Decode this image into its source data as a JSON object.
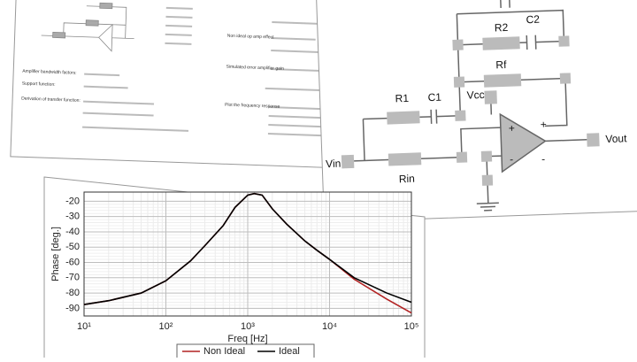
{
  "document": {
    "notes": [
      "Amplifier bandwidth factors:",
      "Support function:",
      "Derivation of transfer function:",
      "Non ideal op amp effect",
      "Simulated error amplifier gain",
      "Plot the frequency response"
    ]
  },
  "circuit": {
    "labels": [
      "R2",
      "C2",
      "Rf",
      "R1",
      "C1",
      "Vcc",
      "Vin",
      "Rin",
      "Vout",
      "+",
      "-",
      "+",
      "-"
    ]
  },
  "chart_data": {
    "type": "line",
    "xlabel": "Freq [Hz]",
    "ylabel": "Phase [deg.]",
    "x": [
      10,
      20,
      50,
      100,
      200,
      300,
      500,
      700,
      1000,
      1200,
      1500,
      2000,
      3000,
      5000,
      7000,
      10000,
      20000,
      50000,
      100000
    ],
    "series": [
      {
        "name": "Non Ideal",
        "color": "#b22222",
        "values": [
          -87.5,
          -85,
          -80,
          -72,
          -59,
          -49,
          -36,
          -24,
          -16,
          -15,
          -16,
          -25,
          -35,
          -46,
          -52,
          -58,
          -71,
          -84,
          -93
        ]
      },
      {
        "name": "Ideal",
        "color": "#000000",
        "values": [
          -87.5,
          -85,
          -80,
          -72,
          -59,
          -49,
          -36,
          -24,
          -16,
          -15,
          -16,
          -25,
          -35,
          -46,
          -52,
          -58,
          -70,
          -80,
          -86
        ]
      }
    ],
    "xlim": [
      10,
      100000
    ],
    "xscale": "log",
    "xticks": [
      {
        "value": 10,
        "label": "10¹"
      },
      {
        "value": 100,
        "label": "10²"
      },
      {
        "value": 1000,
        "label": "10³"
      },
      {
        "value": 10000,
        "label": "10⁴"
      },
      {
        "value": 100000,
        "label": "10⁵"
      }
    ],
    "ylim": [
      -95,
      -14
    ],
    "yticks": [
      -90,
      -80,
      -70,
      -60,
      -50,
      -40,
      -30,
      -20
    ],
    "grid": true,
    "legend": "bottom"
  }
}
